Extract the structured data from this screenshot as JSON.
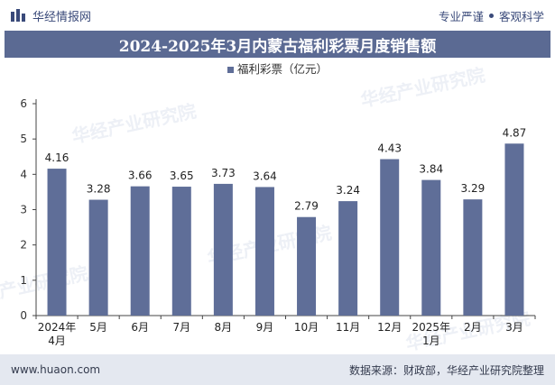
{
  "header": {
    "brand": "华经情报网",
    "tagline_left": "专业严谨",
    "tagline_right": "客观科学"
  },
  "title": "2024-2025年3月内蒙古福利彩票月度销售额",
  "watermark": "华经产业研究院",
  "watermark_url": "www.huaon.com",
  "footer": {
    "url": "www.huaon.com",
    "source": "数据来源：财政部，华经产业研究院整理"
  },
  "colors": {
    "bar": "#5f6e98",
    "title_bg": "#5b6a93",
    "footer_bg": "#e4e8f0",
    "brand": "#3a4a7a"
  },
  "chart_data": {
    "type": "bar",
    "categories": [
      "2024年\n4月",
      "5月",
      "6月",
      "7月",
      "8月",
      "9月",
      "10月",
      "11月",
      "12月",
      "2025年\n1月",
      "2月",
      "3月"
    ],
    "series": [
      {
        "name": "福利彩票（亿元）",
        "values": [
          4.16,
          3.28,
          3.66,
          3.65,
          3.73,
          3.64,
          2.79,
          3.24,
          4.43,
          3.84,
          3.29,
          4.87
        ]
      }
    ],
    "ylim": [
      0,
      6
    ],
    "yticks": [
      0,
      1,
      2,
      3,
      4,
      5,
      6
    ],
    "legend_position": "top-center",
    "grid": false
  }
}
